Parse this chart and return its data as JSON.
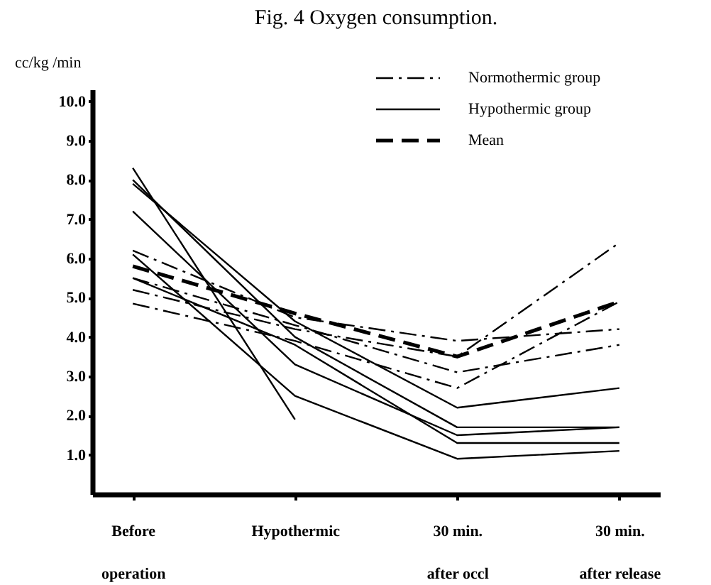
{
  "chart_data": {
    "type": "line",
    "title": "Fig. 4  Oxygen consumption.",
    "ylabel": "cc/kg /min",
    "categories": [
      "Before\noperation",
      "Hypothermic",
      "30  min.\nafter  occl",
      "30  min.\nafter  release"
    ],
    "ylim": [
      0,
      10.3
    ],
    "yticks": [
      {
        "value": 1,
        "label": "1.0"
      },
      {
        "value": 2,
        "label": "2.0"
      },
      {
        "value": 3,
        "label": "3.0"
      },
      {
        "value": 4,
        "label": "4.0"
      },
      {
        "value": 5,
        "label": "5.0"
      },
      {
        "value": 6,
        "label": "6.0"
      },
      {
        "value": 7,
        "label": "7.0"
      },
      {
        "value": 8,
        "label": "8.0"
      },
      {
        "value": 9,
        "label": "9.0"
      },
      {
        "value": 10,
        "label": "10.0"
      }
    ],
    "grid": false,
    "legend": "top right",
    "marker": "none",
    "series": [
      {
        "name": "Normothermic group",
        "color": "#000000",
        "line_style": "dashdot",
        "values": [
          6.2,
          4.5,
          3.9,
          4.2
        ]
      },
      {
        "color": "#000000",
        "line_style": "dashdot",
        "values": [
          5.2,
          4.2,
          3.5,
          6.4
        ]
      },
      {
        "color": "#000000",
        "line_style": "dashdot",
        "values": [
          4.85,
          3.9,
          2.7,
          4.9
        ]
      },
      {
        "color": "#000000",
        "line_style": "dashdot",
        "values": [
          5.5,
          4.3,
          3.1,
          3.8
        ]
      },
      {
        "name": "Hypothermic group",
        "color": "#000000",
        "line_style": "solid",
        "values": [
          8.3,
          1.9,
          null,
          null
        ]
      },
      {
        "color": "#000000",
        "line_style": "solid",
        "values": [
          8.0,
          4.0,
          1.7,
          1.7
        ]
      },
      {
        "color": "#000000",
        "line_style": "solid",
        "values": [
          7.9,
          4.4,
          2.2,
          2.7
        ]
      },
      {
        "color": "#000000",
        "line_style": "solid",
        "values": [
          6.1,
          2.5,
          0.9,
          1.1
        ]
      },
      {
        "color": "#000000",
        "line_style": "solid",
        "values": [
          5.5,
          3.8,
          1.3,
          1.3
        ]
      },
      {
        "color": "#000000",
        "line_style": "solid",
        "values": [
          7.2,
          3.3,
          1.5,
          1.7
        ]
      },
      {
        "name": "Mean",
        "color": "#000000",
        "line_style": "dashed",
        "values": [
          5.8,
          4.6,
          3.5,
          4.9
        ]
      }
    ]
  }
}
